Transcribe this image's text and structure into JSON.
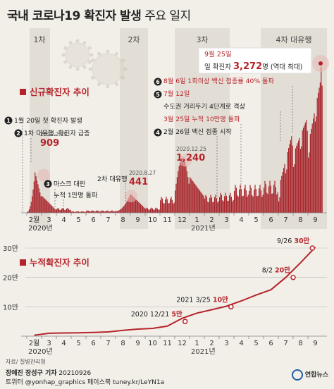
{
  "title_main": "국내 코로나19 확진자 발생",
  "title_light": " 주요 일지",
  "waves": [
    "1차",
    "2차",
    "3차",
    "4차 대유행"
  ],
  "section1_label": "신규확진자 추이",
  "section2_label": "누적확진자 추이",
  "events": [
    {
      "num": "1",
      "text": "1월 20일 첫 확진자 발생"
    },
    {
      "num": "2",
      "text": "1차 대유행, 확진자 급증"
    },
    {
      "num": "3",
      "text": "마스크 대란"
    },
    {
      "num": "",
      "text": "누적 1만명 돌파"
    },
    {
      "num": "",
      "text": "2차 대유행"
    },
    {
      "num": "4",
      "text": "2월 26일 백신 접종 시작"
    },
    {
      "num": "",
      "text": "3월 25일 누적 10만명 돌파"
    },
    {
      "num": "5",
      "text": "7월 12일"
    },
    {
      "num": "",
      "text": "수도권 거리두기 4단계로 격상"
    },
    {
      "num": "6",
      "text": "8월 6일 1회이상 백신 접종률 40% 돌파"
    }
  ],
  "peaks": [
    {
      "date": "2020.2.29",
      "value": "909"
    },
    {
      "date": "2020.8.27",
      "value": "441"
    },
    {
      "date": "2020.12.25",
      "value": "1,240"
    }
  ],
  "record": {
    "date": "9월 25일",
    "prefix": "일 확진자 ",
    "value": "3,272",
    "suffix": "명 (역대 최대)"
  },
  "xaxis_months": [
    "2월",
    "3",
    "4",
    "5",
    "6",
    "7",
    "8",
    "9",
    "10",
    "11",
    "12",
    "1",
    "2",
    "3",
    "4",
    "5",
    "6",
    "7",
    "8",
    "9"
  ],
  "year_labels": [
    "2020년",
    "2021년"
  ],
  "cum_yticks": [
    "10만",
    "20만",
    "30만"
  ],
  "cum_annotations": [
    {
      "date": "2020 12/21",
      "value": "5만"
    },
    {
      "date": "2021 3/25",
      "value": "10만"
    },
    {
      "date": "8/2",
      "value": "20만"
    },
    {
      "date": "9/26",
      "value": "30만"
    }
  ],
  "source": "자료/ 질병관리청",
  "credits_names": "장예진 장성구 기자",
  "credits_date": "20210926",
  "credits_social": "트위터 @yonhap_graphics  페이스북 tuney.kr/LeYN1a",
  "logo": "연합뉴스",
  "colors": {
    "accent": "#b5242a",
    "bars": "#a8272d",
    "bg": "#f2efe9"
  },
  "chart_data": [
    {
      "type": "bar",
      "title": "신규확진자 추이",
      "x_start": "2020-02",
      "x_end": "2021-09",
      "monthly_peak_values": [
        909,
        480,
        120,
        40,
        60,
        60,
        441,
        200,
        130,
        400,
        1240,
        700,
        450,
        500,
        700,
        700,
        800,
        1900,
        2200,
        3272
      ]
    },
    {
      "type": "line",
      "title": "누적확진자 추이",
      "x": [
        "2020-02",
        "2020-03",
        "2020-04",
        "2020-05",
        "2020-06",
        "2020-07",
        "2020-08",
        "2020-09",
        "2020-10",
        "2020-11",
        "2020-12",
        "2021-01",
        "2021-02",
        "2021-03",
        "2021-04",
        "2021-05",
        "2021-06",
        "2021-07",
        "2021-08",
        "2021-09"
      ],
      "y": [
        3000,
        9800,
        10700,
        11400,
        12800,
        14300,
        19900,
        23900,
        26500,
        34200,
        60700,
        78500,
        90000,
        102000,
        120000,
        140000,
        158000,
        200000,
        250000,
        303000
      ],
      "ylim": [
        0,
        300000
      ],
      "yticks": [
        "10만",
        "20만",
        "30만"
      ]
    }
  ]
}
